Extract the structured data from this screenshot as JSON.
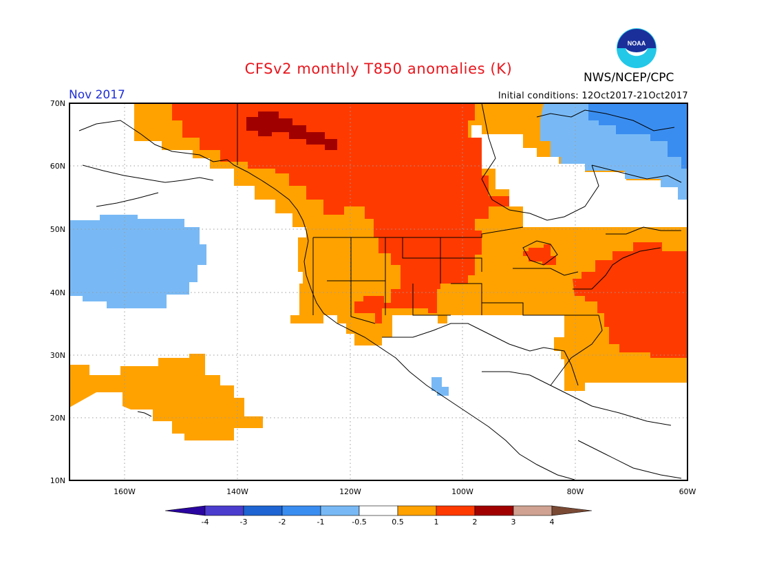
{
  "header": {
    "title": "CFSv2 monthly T850 anomalies (K)",
    "agency": "NWS/NCEP/CPC",
    "period": "Nov 2017",
    "initial_conditions": "Initial conditions: 12Oct2017-21Oct2017"
  },
  "logo": {
    "icon": "noaa-logo-icon",
    "text": "NOAA"
  },
  "map": {
    "lat_labels": [
      "70N",
      "60N",
      "50N",
      "40N",
      "30N",
      "20N",
      "10N"
    ],
    "lon_labels": [
      "160W",
      "140W",
      "120W",
      "100W",
      "80W",
      "60W"
    ],
    "grid": true
  },
  "colorbar": {
    "labels": [
      "-4",
      "-3",
      "-2",
      "-1",
      "-0.5",
      "0.5",
      "1",
      "2",
      "3",
      "4"
    ],
    "colors": [
      "#2a05a0",
      "#4b3cce",
      "#1e64d2",
      "#3a8df0",
      "#78b9f5",
      "#ffffff",
      "#ffa200",
      "#ff3a00",
      "#a10000",
      "#cfa291",
      "#7a4a35"
    ]
  },
  "colors": {
    "title": "#e8151c",
    "period": "#1f2fd6",
    "cat_m1": "#78b9f5",
    "cat_m2": "#3a8df0",
    "cat_p05": "#ffa200",
    "cat_p1": "#ff3a00",
    "cat_p2": "#a10000"
  }
}
